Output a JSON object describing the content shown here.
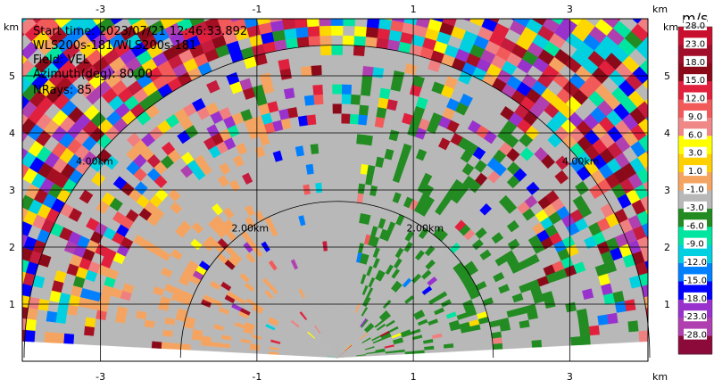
{
  "info": {
    "start_time": "Start time: 2023/07/21 12:46:33.892",
    "instrument": "WLS200s-181/WLS200s-181",
    "field": "Field: VEL",
    "azimuth": "Azimuth(deg): 80.00",
    "nrays": "NRays: 85"
  },
  "axis": {
    "unit_x": "km",
    "unit_y": "km"
  },
  "colorbar": {
    "unit": "m/s",
    "labels": [
      "28.0",
      "23.0",
      "18.0",
      "15.0",
      "12.0",
      "9.0",
      "6.0",
      "3.0",
      "1.0",
      "-1.0",
      "-3.0",
      "-6.0",
      "-9.0",
      "-12.0",
      "-15.0",
      "-18.0",
      "-23.0",
      "-28.0"
    ],
    "colors": [
      "#c51b3d",
      "#a50f22",
      "#8b0a1a",
      "#e0203c",
      "#f25a5a",
      "#f08080",
      "#ffff00",
      "#ffd700",
      "#f4a460",
      "#f0a050",
      "#b8b8b8",
      "#228b22",
      "#2e8b57",
      "#00e5a0",
      "#00d0e0",
      "#0080ff",
      "#0000ff",
      "#2020c0",
      "#9932cc",
      "#b040b0",
      "#8b0a1a"
    ]
  },
  "chart_data": {
    "type": "heatmap",
    "description_type": "RHI radial velocity scan",
    "x_range": [
      -4,
      4
    ],
    "y_range": [
      0,
      6
    ],
    "x_ticks": [
      -3,
      -1,
      1,
      3
    ],
    "y_ticks": [
      1,
      2,
      3,
      4,
      5
    ],
    "ring_labels": [
      "2.00km",
      "2.00km",
      "4.00km",
      "4.00km"
    ],
    "range_rings_km": [
      2,
      4
    ],
    "max_range_km": 6,
    "elevation_range_deg": [
      0,
      180
    ],
    "nrays": 85,
    "value_range": [
      -28,
      28
    ],
    "unit": "m/s"
  }
}
